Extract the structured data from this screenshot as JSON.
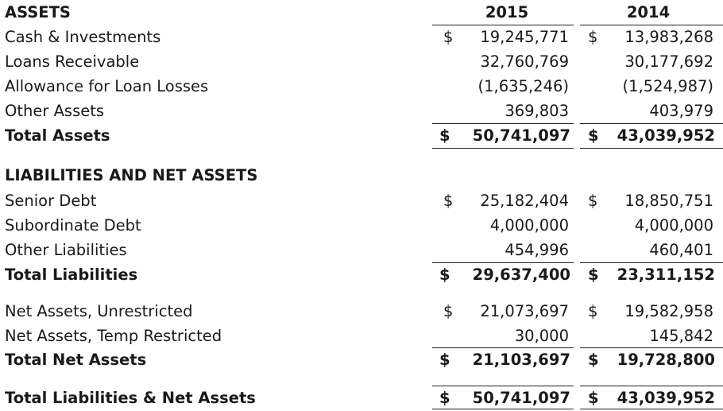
{
  "columns": [
    "2015",
    "2014"
  ],
  "assets": {
    "heading": "ASSETS",
    "rows": [
      {
        "label": "Cash & Investments",
        "dollar1": "$",
        "v2015": "19,245,771",
        "dollar2": "$",
        "v2014": "13,983,268"
      },
      {
        "label": "Loans Receivable",
        "dollar1": "",
        "v2015": "32,760,769",
        "dollar2": "",
        "v2014": "30,177,692"
      },
      {
        "label": "Allowance for Loan Losses",
        "dollar1": "",
        "v2015": "(1,635,246)",
        "dollar2": "",
        "v2014": "(1,524,987)"
      },
      {
        "label": "Other Assets",
        "dollar1": "",
        "v2015": "369,803",
        "dollar2": "",
        "v2014": "403,979"
      }
    ],
    "total": {
      "label": "Total Assets",
      "dollar1": "$",
      "v2015": "50,741,097",
      "dollar2": "$",
      "v2014": "43,039,952"
    }
  },
  "liabilities": {
    "heading": "LIABILITIES AND NET ASSETS",
    "rows": [
      {
        "label": "Senior Debt",
        "dollar1": "$",
        "v2015": "25,182,404",
        "dollar2": "$",
        "v2014": "18,850,751"
      },
      {
        "label": "Subordinate Debt",
        "dollar1": "",
        "v2015": "4,000,000",
        "dollar2": "",
        "v2014": "4,000,000"
      },
      {
        "label": "Other Liabilities",
        "dollar1": "",
        "v2015": "454,996",
        "dollar2": "",
        "v2014": "460,401"
      }
    ],
    "total": {
      "label": "Total Liabilities",
      "dollar1": "$",
      "v2015": "29,637,400",
      "dollar2": "$",
      "v2014": "23,311,152"
    }
  },
  "net_assets": {
    "rows": [
      {
        "label": "Net Assets, Unrestricted",
        "dollar1": "$",
        "v2015": "21,073,697",
        "dollar2": "$",
        "v2014": "19,582,958"
      },
      {
        "label": "Net Assets, Temp Restricted",
        "dollar1": "",
        "v2015": "30,000",
        "dollar2": "",
        "v2014": "145,842"
      }
    ],
    "total": {
      "label": "Total Net Assets",
      "dollar1": "$",
      "v2015": "21,103,697",
      "dollar2": "$",
      "v2014": "19,728,800"
    }
  },
  "grand_total": {
    "label": "Total Liabilities & Net Assets",
    "dollar1": "$",
    "v2015": "50,741,097",
    "dollar2": "$",
    "v2014": "43,039,952"
  }
}
